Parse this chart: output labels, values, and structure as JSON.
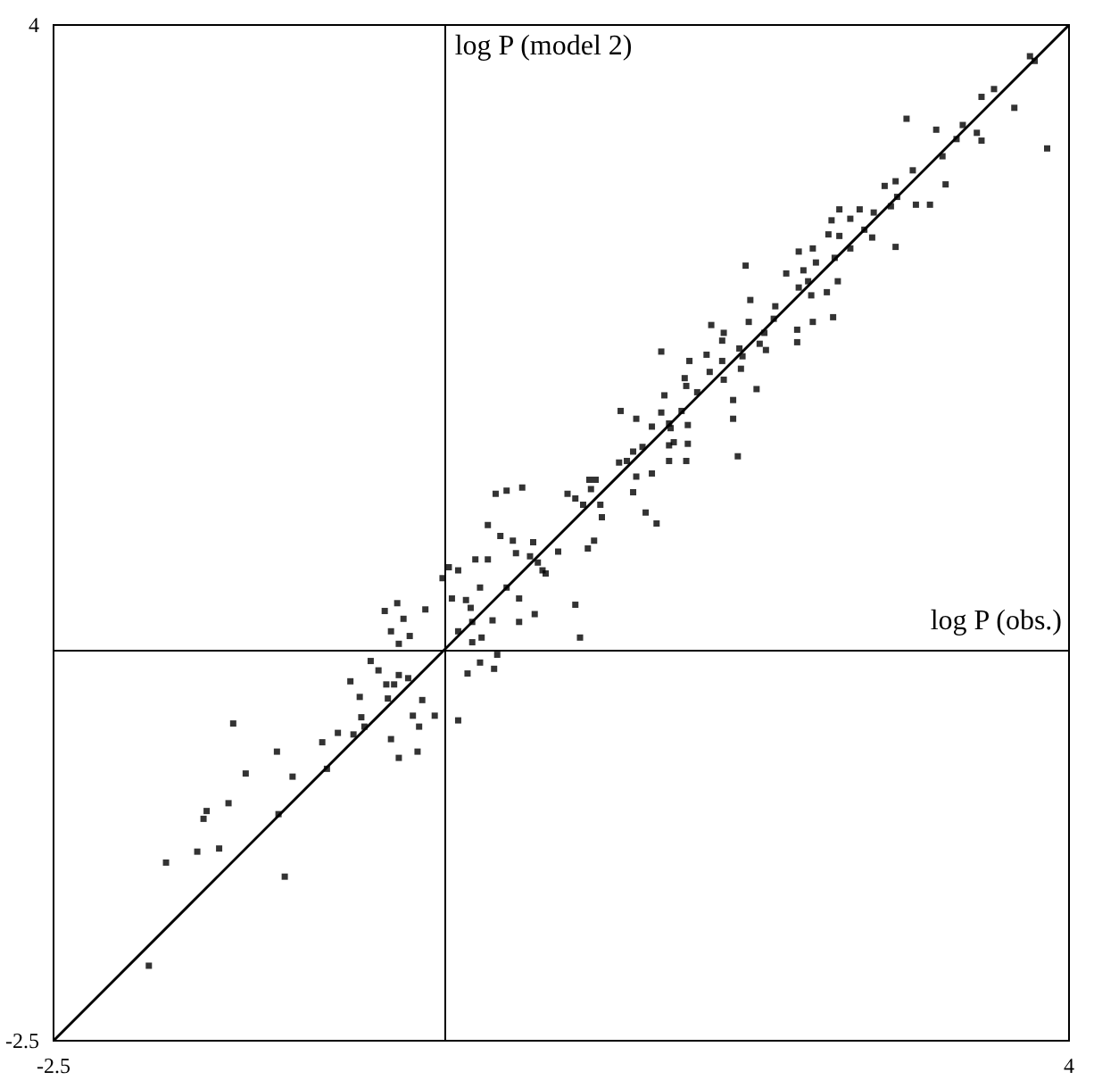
{
  "chart_data": {
    "type": "scatter",
    "xlabel": "log P (obs.)",
    "ylabel": "log P (model 2)",
    "xlim": [
      -2.5,
      4
    ],
    "ylim": [
      -2.5,
      4
    ],
    "xticks": [
      -2.5,
      4
    ],
    "yticks": [
      -2.5,
      4
    ],
    "series": [
      {
        "marker": "square",
        "color": "#000000",
        "x": [
          -1.89,
          -1.78,
          -1.58,
          -1.44,
          -1.54,
          -1.52,
          -1.38,
          -1.35,
          -1.27,
          -1.07,
          -1.06,
          -1.02,
          -0.97,
          -0.78,
          -0.75,
          -0.68,
          -0.6,
          -0.58,
          -0.54,
          -0.53,
          -0.51,
          -0.47,
          -0.42,
          -0.37,
          -0.36,
          -0.34,
          -0.32,
          -0.29,
          -0.29,
          -0.23,
          -0.2,
          -0.17,
          -0.16,
          -0.14,
          -0.06,
          -0.38,
          -0.3,
          -0.26,
          -0.34,
          -0.29,
          -0.22,
          -0.12,
          -0.01,
          0.03,
          0.09,
          0.05,
          0.09,
          0.14,
          0.17,
          0.18,
          0.23,
          0.24,
          0.18,
          0.2,
          0.28,
          0.31,
          0.36,
          0.4,
          0.44,
          0.46,
          0.48,
          0.48,
          0.57,
          0.55,
          0.6,
          0.65,
          0.58,
          0.73,
          0.15,
          0.09,
          0.23,
          0.32,
          0.34,
          0.28,
          3.75,
          3.78,
          3.44,
          3.52,
          3.65,
          3.86,
          2.96,
          3.15,
          3.32,
          3.41,
          3.44,
          3.28,
          3.19,
          3.0,
          2.82,
          2.89,
          2.9,
          2.86,
          3.02,
          3.11,
          3.21,
          2.89,
          2.75,
          2.66,
          2.53,
          2.48,
          2.6,
          2.69,
          2.74,
          2.53,
          2.46,
          2.6,
          2.36,
          2.27,
          2.38,
          2.5,
          2.19,
          2.3,
          2.33,
          2.27,
          2.52,
          2.45,
          2.35,
          1.93,
          1.96,
          2.12,
          2.11,
          1.95,
          2.26,
          2.26,
          2.36,
          2.49,
          2.05,
          2.02,
          2.06,
          1.79,
          1.71,
          1.78,
          1.89,
          1.91,
          1.68,
          1.57,
          1.7,
          1.78,
          1.79,
          1.9,
          1.85,
          1.85,
          2.0,
          1.88,
          1.39,
          1.54,
          1.55,
          1.62,
          1.41,
          1.52,
          1.39,
          1.44,
          1.56,
          1.33,
          1.23,
          1.13,
          1.27,
          1.45,
          1.44,
          1.47,
          1.56,
          1.55,
          1.44,
          1.33,
          1.21,
          1.12,
          1.17,
          1.23,
          0.93,
          0.97,
          0.94,
          1.21,
          0.79,
          0.84,
          0.89,
          1.0,
          1.29,
          0.84,
          0.87,
          0.96,
          0.92,
          0.63,
          1.01,
          1.36,
          0.33,
          0.4,
          0.5
        ],
        "values": [
          -2.02,
          -1.36,
          -1.29,
          -1.27,
          -1.08,
          -1.03,
          -0.98,
          -0.47,
          -0.79,
          -0.65,
          -1.05,
          -1.45,
          -0.81,
          -0.59,
          -0.76,
          -0.53,
          -0.2,
          -0.54,
          -0.3,
          -0.43,
          -0.49,
          -0.07,
          -0.13,
          -0.22,
          -0.31,
          -0.57,
          -0.22,
          -0.69,
          -0.16,
          -0.18,
          -0.42,
          -0.65,
          -0.49,
          -0.32,
          -0.42,
          0.25,
          0.3,
          0.2,
          0.12,
          0.04,
          0.09,
          0.26,
          0.46,
          0.53,
          0.51,
          0.33,
          0.12,
          0.32,
          0.27,
          0.18,
          0.4,
          0.08,
          0.05,
          0.58,
          0.58,
          0.19,
          0.73,
          0.4,
          0.7,
          0.62,
          0.33,
          0.18,
          0.69,
          0.6,
          0.56,
          0.49,
          0.23,
          0.63,
          -0.15,
          -0.45,
          -0.08,
          -0.12,
          -0.03,
          0.8,
          3.8,
          3.77,
          3.54,
          3.59,
          3.47,
          3.21,
          3.4,
          3.33,
          3.36,
          3.31,
          3.26,
          3.27,
          3.16,
          3.07,
          2.97,
          3.0,
          2.9,
          2.84,
          2.85,
          2.85,
          2.98,
          2.58,
          2.8,
          2.82,
          2.82,
          2.75,
          2.76,
          2.69,
          2.64,
          2.65,
          2.66,
          2.57,
          2.57,
          2.55,
          2.48,
          2.51,
          2.41,
          2.43,
          2.36,
          2.32,
          2.36,
          2.29,
          2.27,
          2.46,
          2.24,
          2.2,
          2.12,
          2.1,
          2.05,
          1.97,
          2.1,
          2.13,
          2.03,
          1.96,
          1.92,
          2.03,
          2.08,
          1.98,
          1.93,
          1.88,
          1.89,
          1.85,
          1.78,
          1.85,
          1.73,
          1.8,
          1.6,
          1.48,
          1.67,
          1.24,
          1.91,
          1.74,
          1.69,
          1.65,
          1.63,
          1.53,
          1.52,
          1.45,
          1.44,
          1.43,
          1.48,
          1.53,
          1.3,
          1.42,
          1.31,
          1.33,
          1.32,
          1.21,
          1.21,
          1.13,
          1.27,
          1.2,
          1.21,
          1.11,
          1.09,
          1.09,
          1.03,
          1.01,
          1.0,
          0.97,
          0.93,
          0.93,
          0.88,
          0.29,
          0.08,
          0.7,
          0.65,
          0.51,
          0.85,
          0.81,
          1.0,
          1.02,
          1.04
        ]
      },
      {
        "type": "line",
        "marker": "none",
        "color": "#000000",
        "x": [
          -2.5,
          4
        ],
        "values": [
          -2.5,
          4
        ]
      }
    ]
  }
}
